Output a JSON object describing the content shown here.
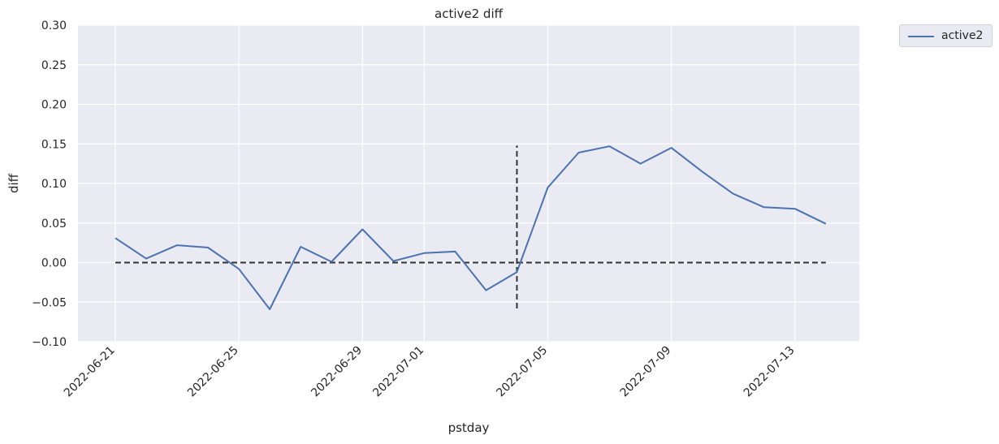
{
  "chart_data": {
    "type": "line",
    "title": "active2 diff",
    "xlabel": "pstday",
    "ylabel": "diff",
    "ylim": [
      -0.1,
      0.3
    ],
    "xlim": [
      "2022-06-19T19:00",
      "2022-07-15T02:00"
    ],
    "yticks": [
      -0.1,
      -0.05,
      0.0,
      0.05,
      0.1,
      0.15,
      0.2,
      0.25,
      0.3
    ],
    "ytick_labels": [
      "−0.10",
      "−0.05",
      "0.00",
      "0.05",
      "0.10",
      "0.15",
      "0.20",
      "0.25",
      "0.30"
    ],
    "xticks": [
      "2022-06-21",
      "2022-06-25",
      "2022-06-29",
      "2022-07-01",
      "2022-07-05",
      "2022-07-09",
      "2022-07-13"
    ],
    "grid": true,
    "legend_position": "outside top-right",
    "series": [
      {
        "name": "active2",
        "color": "#4c72b0",
        "x": [
          "2022-06-21",
          "2022-06-22",
          "2022-06-23",
          "2022-06-24",
          "2022-06-25",
          "2022-06-26",
          "2022-06-27",
          "2022-06-28",
          "2022-06-29",
          "2022-06-30",
          "2022-07-01",
          "2022-07-02",
          "2022-07-03",
          "2022-07-04",
          "2022-07-05",
          "2022-07-06",
          "2022-07-07",
          "2022-07-08",
          "2022-07-09",
          "2022-07-10",
          "2022-07-11",
          "2022-07-12",
          "2022-07-13",
          "2022-07-14"
        ],
        "values": [
          0.031,
          0.005,
          0.022,
          0.019,
          -0.008,
          -0.059,
          0.02,
          0.001,
          0.042,
          0.002,
          0.012,
          0.014,
          -0.035,
          -0.012,
          0.095,
          0.139,
          0.147,
          0.125,
          0.145,
          0.115,
          0.087,
          0.07,
          0.068,
          0.049
        ]
      }
    ],
    "reference_lines": [
      {
        "orientation": "horizontal",
        "y": 0.0,
        "x_from": "2022-06-21",
        "x_to": "2022-07-14",
        "style": "dashed",
        "color": "#333333"
      },
      {
        "orientation": "vertical",
        "x": "2022-07-04",
        "y_from": -0.058,
        "y_to": 0.148,
        "style": "dashed",
        "color": "#333333"
      }
    ]
  }
}
